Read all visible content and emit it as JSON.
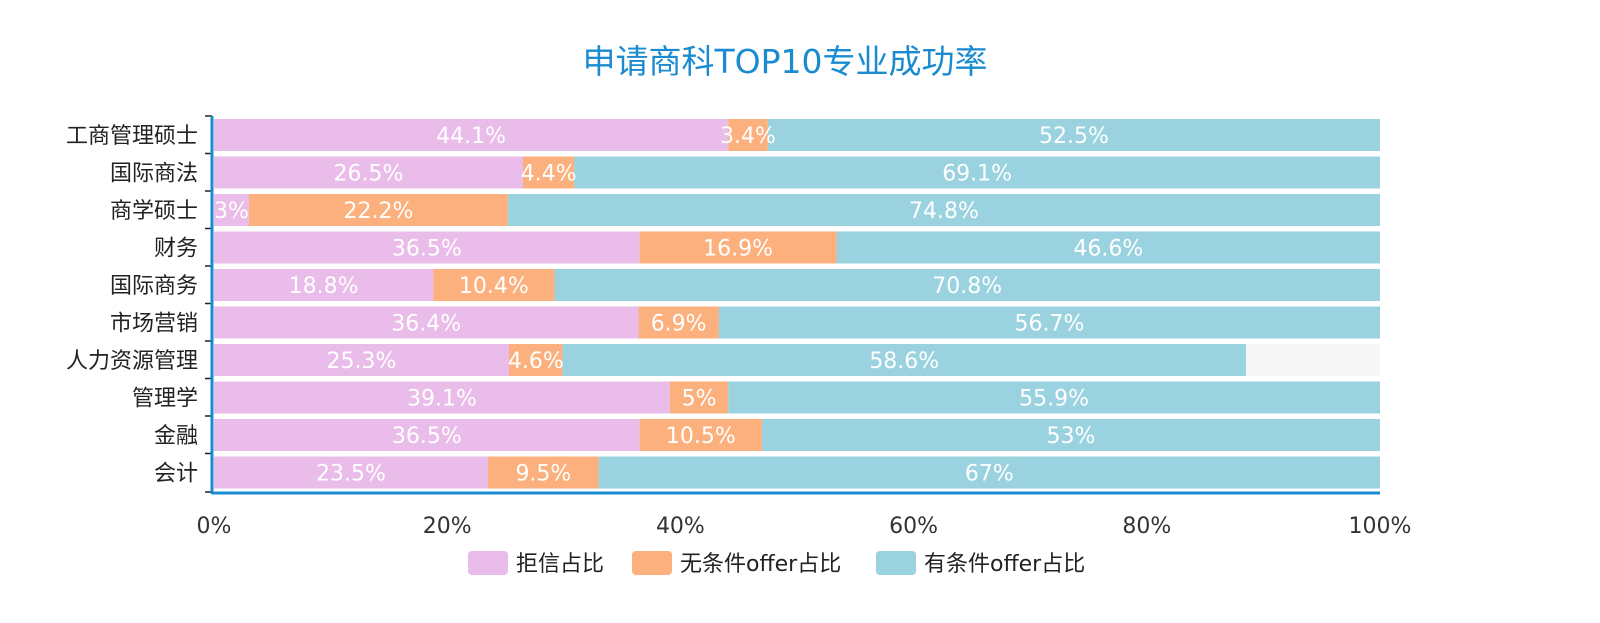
{
  "chart_data": {
    "type": "bar",
    "orientation": "horizontal",
    "stacked": true,
    "title": "申请商科TOP10专业成功率",
    "categories": [
      "工商管理硕士",
      "国际商法",
      "商学硕士",
      "财务",
      "国际商务",
      "市场营销",
      "人力资源管理",
      "管理学",
      "金融",
      "会计"
    ],
    "series": [
      {
        "name": "拒信占比",
        "color": "#e9bce9",
        "values": [
          44.1,
          26.5,
          3,
          36.5,
          18.8,
          36.4,
          25.3,
          39.1,
          36.5,
          23.5
        ],
        "labels": [
          "44.1%",
          "26.5%",
          "3%",
          "36.5%",
          "18.8%",
          "36.4%",
          "25.3%",
          "39.1%",
          "36.5%",
          "23.5%"
        ]
      },
      {
        "name": "无条件offer占比",
        "color": "#fbb07e",
        "values": [
          3.4,
          4.4,
          22.2,
          16.9,
          10.4,
          6.9,
          4.6,
          5,
          10.5,
          9.5
        ],
        "labels": [
          "3.4%",
          "4.4%",
          "22.2%",
          "16.9%",
          "10.4%",
          "6.9%",
          "4.6%",
          "5%",
          "10.5%",
          "9.5%"
        ]
      },
      {
        "name": "有条件offer占比",
        "color": "#9ad3df",
        "values": [
          52.5,
          69.1,
          74.8,
          46.6,
          70.8,
          56.7,
          58.6,
          55.9,
          53,
          67
        ],
        "labels": [
          "52.5%",
          "69.1%",
          "74.8%",
          "46.6%",
          "70.8%",
          "56.7%",
          "58.6%",
          "55.9%",
          "53%",
          "67%"
        ]
      }
    ],
    "xlim": [
      0,
      100
    ],
    "xticks": [
      "0%",
      "20%",
      "40%",
      "60%",
      "80%",
      "100%"
    ],
    "legend_position": "bottom",
    "grid": false,
    "axis_color": "#1a8bd0",
    "track_color": "#f7f7f7",
    "title_color": "#1a8bd0"
  }
}
